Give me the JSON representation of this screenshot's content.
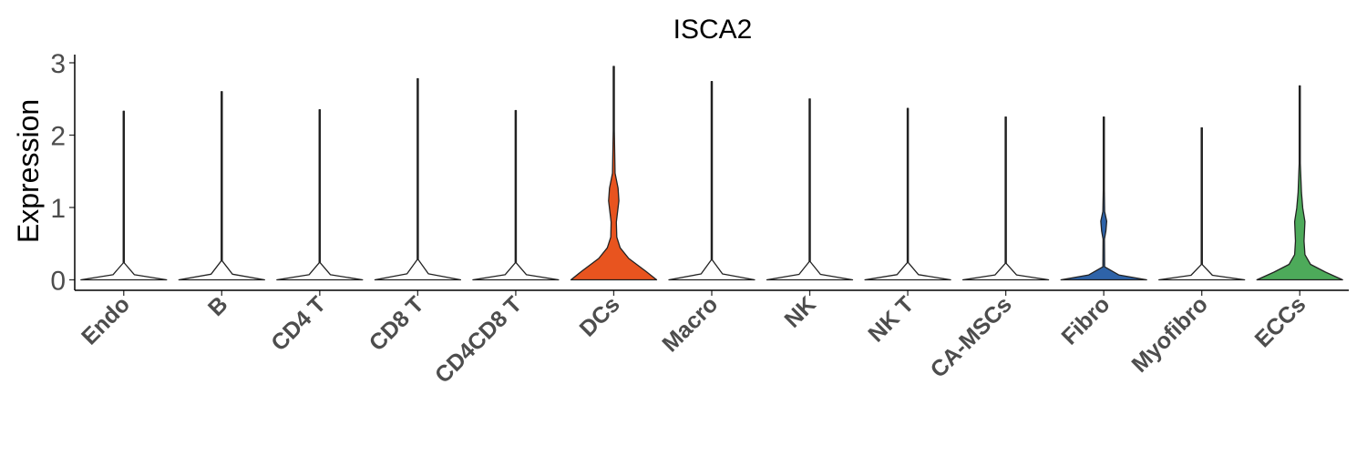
{
  "chart_data": {
    "type": "violin",
    "title": "ISCA2",
    "ylabel": "Expression",
    "xlabel": "",
    "ylim": [
      0,
      3
    ],
    "yticks": [
      "0",
      "1",
      "2",
      "3"
    ],
    "grid": false,
    "legend": "none",
    "categories": [
      "Endo",
      "B",
      "CD4 T",
      "CD8 T",
      "CD4CD8 T",
      "DCs",
      "Macro",
      "NK",
      "NK T",
      "CA-MSCs",
      "Fibro",
      "Myofibro",
      "ECCs"
    ],
    "max_values": [
      2.33,
      2.6,
      2.35,
      2.78,
      2.34,
      2.95,
      2.74,
      2.5,
      2.37,
      2.25,
      2.25,
      2.1,
      2.68
    ],
    "colors": [
      "#ffffff",
      "#ffffff",
      "#ffffff",
      "#ffffff",
      "#ffffff",
      "#e8541f",
      "#ffffff",
      "#ffffff",
      "#ffffff",
      "#ffffff",
      "#2e63a8",
      "#ffffff",
      "#4daa5a"
    ],
    "density_profiles": [
      [
        [
          0,
          1.0
        ],
        [
          0.03,
          0.25
        ],
        [
          0.1,
          0.01
        ],
        [
          0.5,
          0.005
        ],
        [
          1.0,
          0.003
        ]
      ],
      [
        [
          0,
          1.0
        ],
        [
          0.03,
          0.25
        ],
        [
          0.1,
          0.01
        ],
        [
          0.5,
          0.005
        ],
        [
          1.0,
          0.003
        ]
      ],
      [
        [
          0,
          1.0
        ],
        [
          0.03,
          0.25
        ],
        [
          0.1,
          0.01
        ],
        [
          0.5,
          0.005
        ],
        [
          1.0,
          0.003
        ]
      ],
      [
        [
          0,
          1.0
        ],
        [
          0.03,
          0.25
        ],
        [
          0.1,
          0.01
        ],
        [
          0.5,
          0.005
        ],
        [
          1.0,
          0.003
        ]
      ],
      [
        [
          0,
          1.0
        ],
        [
          0.03,
          0.25
        ],
        [
          0.1,
          0.01
        ],
        [
          0.5,
          0.005
        ],
        [
          1.0,
          0.003
        ]
      ],
      [
        [
          0,
          1.0
        ],
        [
          0.04,
          0.75
        ],
        [
          0.1,
          0.35
        ],
        [
          0.15,
          0.15
        ],
        [
          0.2,
          0.07
        ],
        [
          0.27,
          0.06
        ],
        [
          0.37,
          0.12
        ],
        [
          0.43,
          0.1
        ],
        [
          0.5,
          0.03
        ],
        [
          0.7,
          0.01
        ],
        [
          1.0,
          0.003
        ]
      ],
      [
        [
          0,
          1.0
        ],
        [
          0.03,
          0.25
        ],
        [
          0.1,
          0.01
        ],
        [
          0.5,
          0.005
        ],
        [
          1.0,
          0.003
        ]
      ],
      [
        [
          0,
          1.0
        ],
        [
          0.03,
          0.25
        ],
        [
          0.1,
          0.01
        ],
        [
          0.5,
          0.005
        ],
        [
          1.0,
          0.003
        ]
      ],
      [
        [
          0,
          1.0
        ],
        [
          0.03,
          0.25
        ],
        [
          0.1,
          0.01
        ],
        [
          0.5,
          0.005
        ],
        [
          1.0,
          0.003
        ]
      ],
      [
        [
          0,
          1.0
        ],
        [
          0.03,
          0.25
        ],
        [
          0.1,
          0.01
        ],
        [
          0.5,
          0.005
        ],
        [
          1.0,
          0.003
        ]
      ],
      [
        [
          0,
          1.0
        ],
        [
          0.03,
          0.35
        ],
        [
          0.08,
          0.02
        ],
        [
          0.25,
          0.015
        ],
        [
          0.3,
          0.05
        ],
        [
          0.36,
          0.07
        ],
        [
          0.42,
          0.02
        ],
        [
          0.55,
          0.01
        ],
        [
          1.0,
          0.003
        ]
      ],
      [
        [
          0,
          1.0
        ],
        [
          0.03,
          0.25
        ],
        [
          0.1,
          0.01
        ],
        [
          0.5,
          0.005
        ],
        [
          1.0,
          0.003
        ]
      ],
      [
        [
          0,
          1.0
        ],
        [
          0.04,
          0.6
        ],
        [
          0.08,
          0.25
        ],
        [
          0.13,
          0.12
        ],
        [
          0.2,
          0.1
        ],
        [
          0.3,
          0.12
        ],
        [
          0.37,
          0.07
        ],
        [
          0.45,
          0.04
        ],
        [
          0.6,
          0.01
        ],
        [
          1.0,
          0.003
        ]
      ]
    ]
  }
}
